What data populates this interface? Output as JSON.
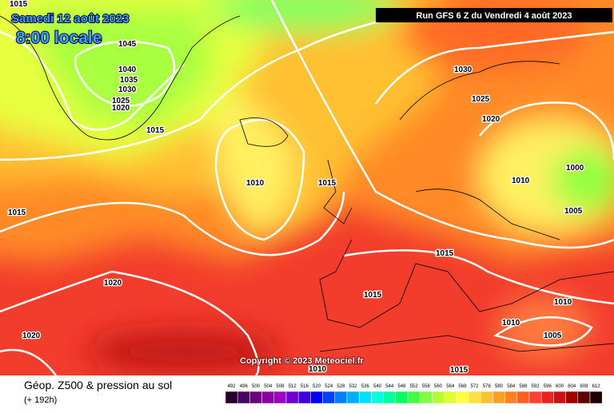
{
  "header": {
    "date": "Samedi 12 août 2023",
    "time": "8:00 locale",
    "run": "Run GFS 6 Z du Vendredi 4 août 2023"
  },
  "copyright": "Copyright © 2023 Meteociel.fr",
  "footer": {
    "title": "Géop. Z500 & pression au sol",
    "lead": "(+ 192h)"
  },
  "isobars": [
    "1015",
    "1045",
    "1040",
    "1035",
    "1030",
    "1025",
    "1020",
    "1015",
    "1010",
    "1015",
    "1015",
    "1030",
    "1025",
    "1020",
    "1010",
    "1000",
    "1005",
    "1015",
    "1020",
    "1015",
    "1010",
    "1010",
    "1005",
    "1020",
    "1010",
    "1015"
  ],
  "scale": [
    "492",
    "496",
    "500",
    "504",
    "508",
    "512",
    "516",
    "520",
    "524",
    "528",
    "532",
    "536",
    "540",
    "544",
    "548",
    "552",
    "556",
    "560",
    "564",
    "568",
    "572",
    "576",
    "580",
    "584",
    "588",
    "592",
    "596",
    "600",
    "604",
    "608",
    "612"
  ]
}
